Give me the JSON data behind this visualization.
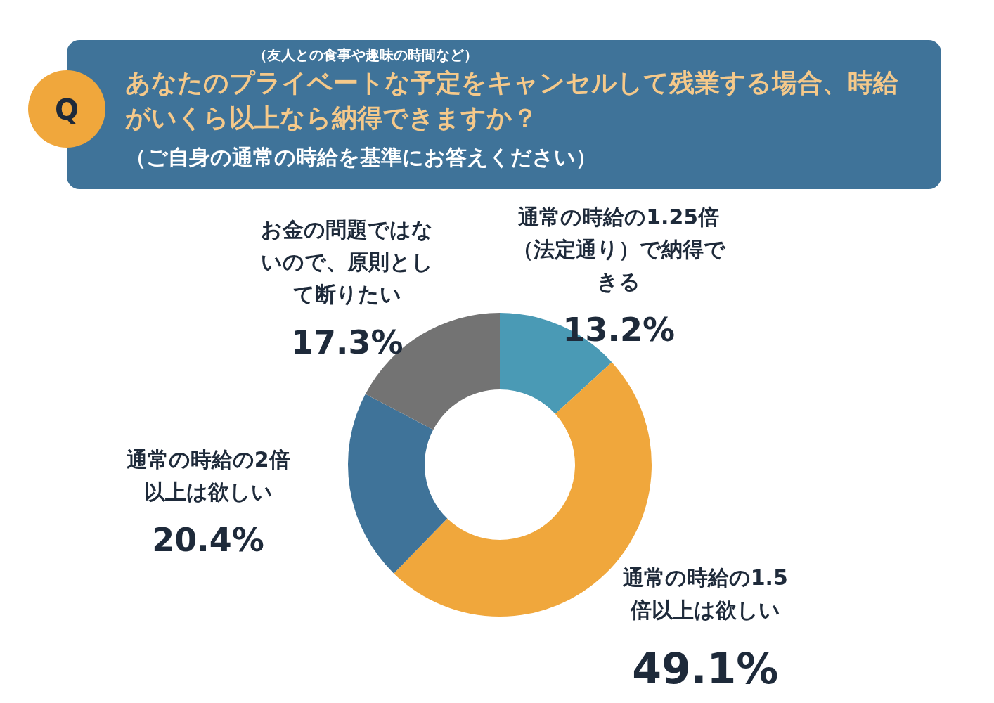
{
  "chart_data": {
    "type": "donut",
    "title": "あなたのプライベートな予定をキャンセルして残業する場合、時給がいくら以上なら納得できますか？",
    "subtitle": "（ご自身の通常の時給を基準にお答えください）",
    "annotations": [
      "Q",
      "（友人との食事や趣味の時間など）"
    ],
    "categories": [
      "通常の時給の1.25倍（法定通り）で納得できる",
      "通常の時給の1.5倍以上は欲しい",
      "通常の時給の2倍以上は欲しい",
      "お金の問題ではないので、原則として断りたい"
    ],
    "values": [
      13.2,
      49.1,
      20.4,
      17.3
    ],
    "colors": [
      "#4a9ab5",
      "#f0a73c",
      "#3f7399",
      "#737373"
    ],
    "value_labels": [
      "13.2%",
      "49.1%",
      "20.4%",
      "17.3%"
    ]
  }
}
